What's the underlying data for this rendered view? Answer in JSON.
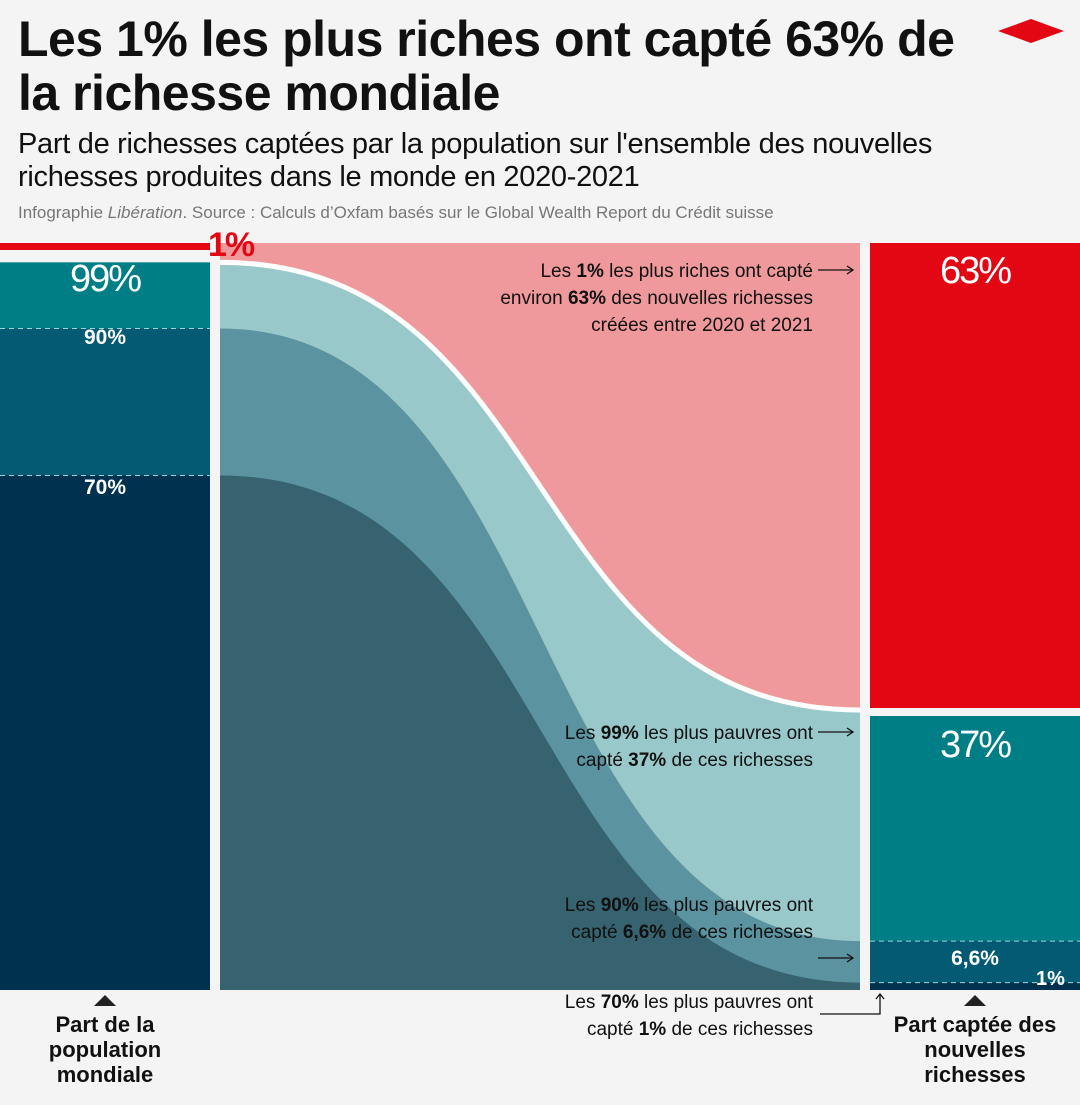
{
  "title": "Les 1% les plus riches ont capté 63% de la richesse mondiale",
  "subtitle": "Part de richesses captées par la population sur l'ensemble des nouvelles richesses produites dans le monde en 2020-2021",
  "source_prefix": "Infographie ",
  "source_brand": "Libération",
  "source_suffix": ". Source : Calculs d’Oxfam basés sur le Global Wealth Report du Crédit suisse",
  "logo": "liberation-diamond-logo",
  "colors": {
    "red": "#e30613",
    "pink": "#f0999c",
    "teal": "#007e85",
    "mid": "#045a73",
    "dark": "#00324f",
    "flow99": "#99c8ca",
    "flow90": "#5b93a0",
    "flow70": "#36636f"
  },
  "chart_data": {
    "type": "sankey",
    "left_axis_label": "Part de la population mondiale",
    "right_axis_label": "Part captée des nouvelles richesses",
    "population_labels": {
      "top1": "1%",
      "p99": "99%",
      "p90": "90%",
      "p70": "70%"
    },
    "wealth_labels": {
      "top1": "63%",
      "p99": "37%",
      "p90": "6,6%",
      "p70": "1%"
    },
    "flows": [
      {
        "group": "1% les plus riches",
        "population_pct": 1,
        "wealth_pct": 63
      },
      {
        "group": "99% les plus pauvres",
        "population_pct": 99,
        "wealth_pct": 37
      },
      {
        "group": "90% les plus pauvres",
        "population_pct": 90,
        "wealth_pct": 6.6
      },
      {
        "group": "70% les plus pauvres",
        "population_pct": 70,
        "wealth_pct": 1
      }
    ]
  },
  "notes": {
    "n1": [
      "Les ",
      "1%",
      " les plus riches ont capté environ ",
      "63%",
      " des nouvelles richesses créées entre 2020 et 2021"
    ],
    "n2": [
      "Les ",
      "99%",
      " les plus pauvres ont capté ",
      "37%",
      " de ces richesses"
    ],
    "n3": [
      "Les ",
      "90%",
      " les plus pauvres ont capté ",
      "6,6%",
      " de ces richesses"
    ],
    "n4": [
      "Les ",
      "70%",
      " les plus pauvres ont capté ",
      "1%",
      " de ces richesses"
    ]
  }
}
